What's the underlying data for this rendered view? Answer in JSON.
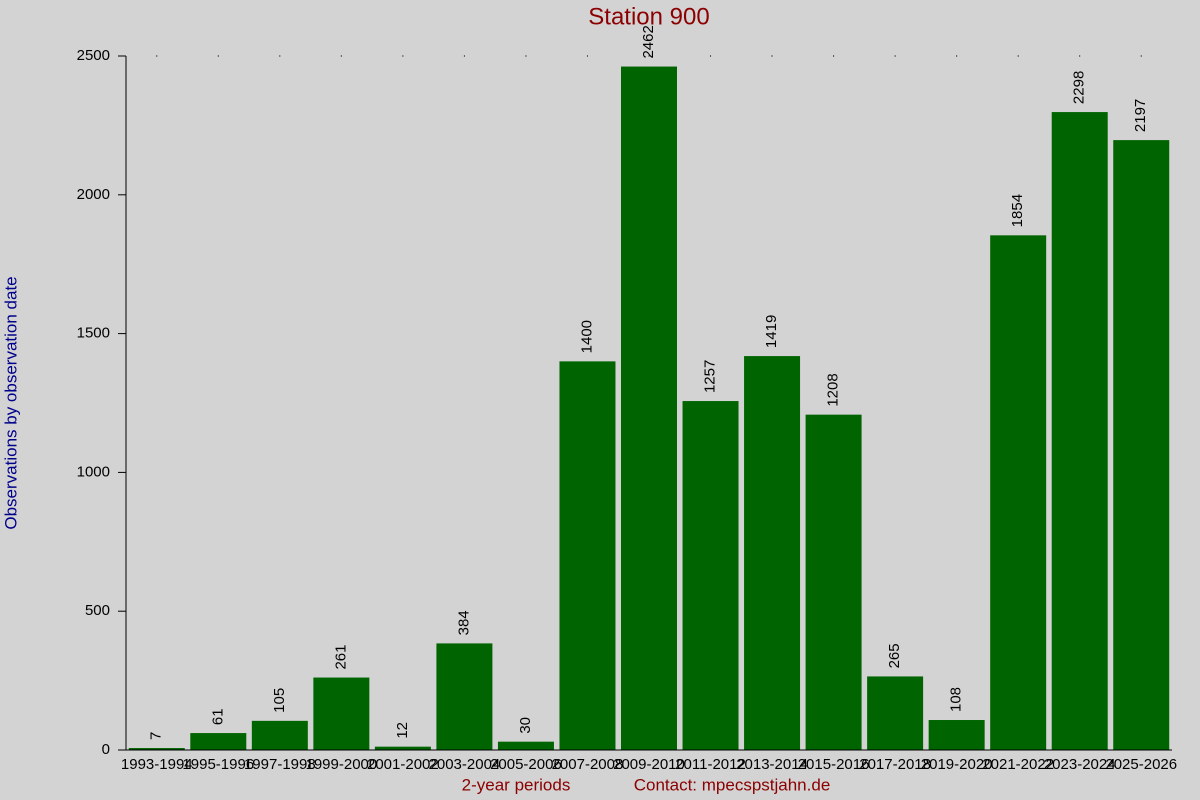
{
  "chart_data": {
    "type": "bar",
    "title": "Station 900",
    "x_label": "2-year periods",
    "contact": "Contact: mpecspstjahn.de",
    "y_label": "Observations by observation date",
    "categories": [
      "1993-1994",
      "1995-1996",
      "1997-1998",
      "1999-2000",
      "2001-2002",
      "2003-2004",
      "2005-2006",
      "2007-2008",
      "2009-2010",
      "2011-2012",
      "2013-2014",
      "2015-2016",
      "2017-2018",
      "2019-2020",
      "2021-2022",
      "2023-2024",
      "2025-2026"
    ],
    "values": [
      7,
      61,
      105,
      261,
      12,
      384,
      30,
      1400,
      2462,
      1257,
      1419,
      1208,
      265,
      108,
      1854,
      2298,
      2197
    ],
    "color": "#006400",
    "ylim": [
      0,
      2500
    ],
    "yticks": [
      0,
      500,
      1000,
      1500,
      2000,
      2500
    ]
  }
}
